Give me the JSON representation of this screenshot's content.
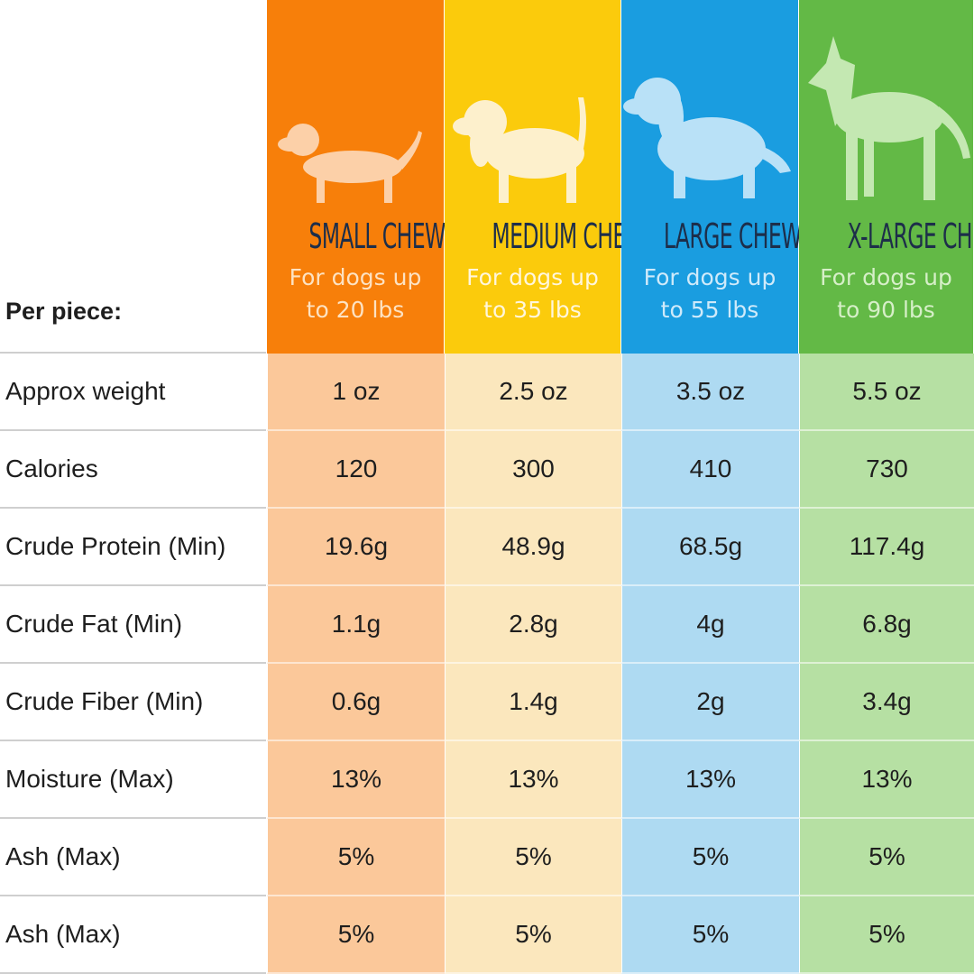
{
  "header": {
    "label": "Per piece:"
  },
  "columns": [
    {
      "title": "SMALL CHEW",
      "subtitle": [
        "For dogs up",
        "to 20 lbs"
      ]
    },
    {
      "title": "MEDIUM CHEW",
      "subtitle": [
        "For dogs up",
        "to 35 lbs"
      ]
    },
    {
      "title": "LARGE CHEW",
      "subtitle": [
        "For dogs up",
        "to 55 lbs"
      ]
    },
    {
      "title": "X-LARGE CHEW",
      "subtitle": [
        "For dogs up",
        "to 90 lbs"
      ]
    }
  ],
  "rows": [
    {
      "label": "Approx weight",
      "cells": [
        "1 oz",
        "2.5 oz",
        "3.5 oz",
        "5.5 oz"
      ]
    },
    {
      "label": "Calories",
      "cells": [
        "120",
        "300",
        "410",
        "730"
      ]
    },
    {
      "label": "Crude Protein (Min)",
      "cells": [
        "19.6g",
        "48.9g",
        "68.5g",
        "117.4g"
      ]
    },
    {
      "label": "Crude Fat (Min)",
      "cells": [
        "1.1g",
        "2.8g",
        "4g",
        "6.8g"
      ]
    },
    {
      "label": "Crude Fiber (Min)",
      "cells": [
        "0.6g",
        "1.4g",
        "2g",
        "3.4g"
      ]
    },
    {
      "label": "Moisture (Max)",
      "cells": [
        "13%",
        "13%",
        "13%",
        "13%"
      ]
    },
    {
      "label": "Ash (Max)",
      "cells": [
        "5%",
        "5%",
        "5%",
        "5%"
      ]
    },
    {
      "label": "Ash (Max)",
      "cells": [
        "5%",
        "5%",
        "5%",
        "5%"
      ]
    }
  ]
}
